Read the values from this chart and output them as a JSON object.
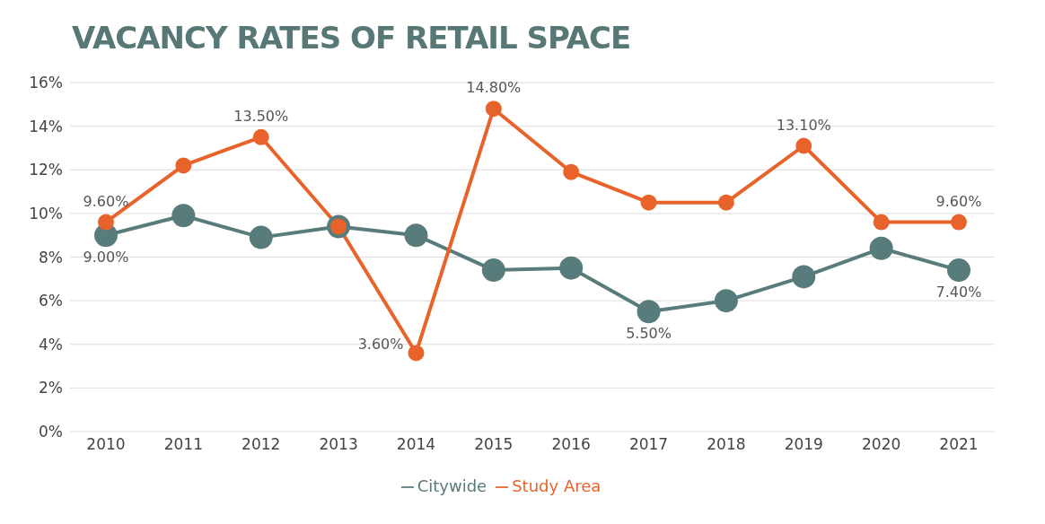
{
  "chart_data": {
    "type": "line",
    "title": "VACANCY RATES OF RETAIL SPACE",
    "categories": [
      "2010",
      "2011",
      "2012",
      "2013",
      "2014",
      "2015",
      "2016",
      "2017",
      "2018",
      "2019",
      "2020",
      "2021"
    ],
    "series": [
      {
        "name": "Citywide",
        "color": "#587b7b",
        "values": [
          9.0,
          9.9,
          8.9,
          9.4,
          9.0,
          7.4,
          7.5,
          5.5,
          6.0,
          7.1,
          8.4,
          7.4
        ],
        "value_labels": [
          "9.00%",
          null,
          null,
          null,
          null,
          null,
          null,
          "5.50%",
          null,
          null,
          null,
          "7.40%"
        ]
      },
      {
        "name": "Study Area",
        "color": "#e8632b",
        "values": [
          9.6,
          12.2,
          13.5,
          9.4,
          3.6,
          14.8,
          11.9,
          10.5,
          10.5,
          13.1,
          9.6,
          9.6
        ],
        "value_labels": [
          "9.60%",
          null,
          "13.50%",
          null,
          "3.60%",
          "14.80%",
          null,
          null,
          null,
          "13.10%",
          null,
          "9.60%"
        ]
      }
    ],
    "ylim": [
      0,
      16
    ],
    "yticks": [
      {
        "value": 0,
        "label": "0%"
      },
      {
        "value": 2,
        "label": "2%"
      },
      {
        "value": 4,
        "label": "4%"
      },
      {
        "value": 6,
        "label": "6%"
      },
      {
        "value": 8,
        "label": "8%"
      },
      {
        "value": 10,
        "label": "10%"
      },
      {
        "value": 12,
        "label": "12%"
      },
      {
        "value": 14,
        "label": "14%"
      },
      {
        "value": 16,
        "label": "16%"
      }
    ],
    "grid": "y",
    "legend": "bottom",
    "marker": "circle",
    "line_style": "solid"
  }
}
